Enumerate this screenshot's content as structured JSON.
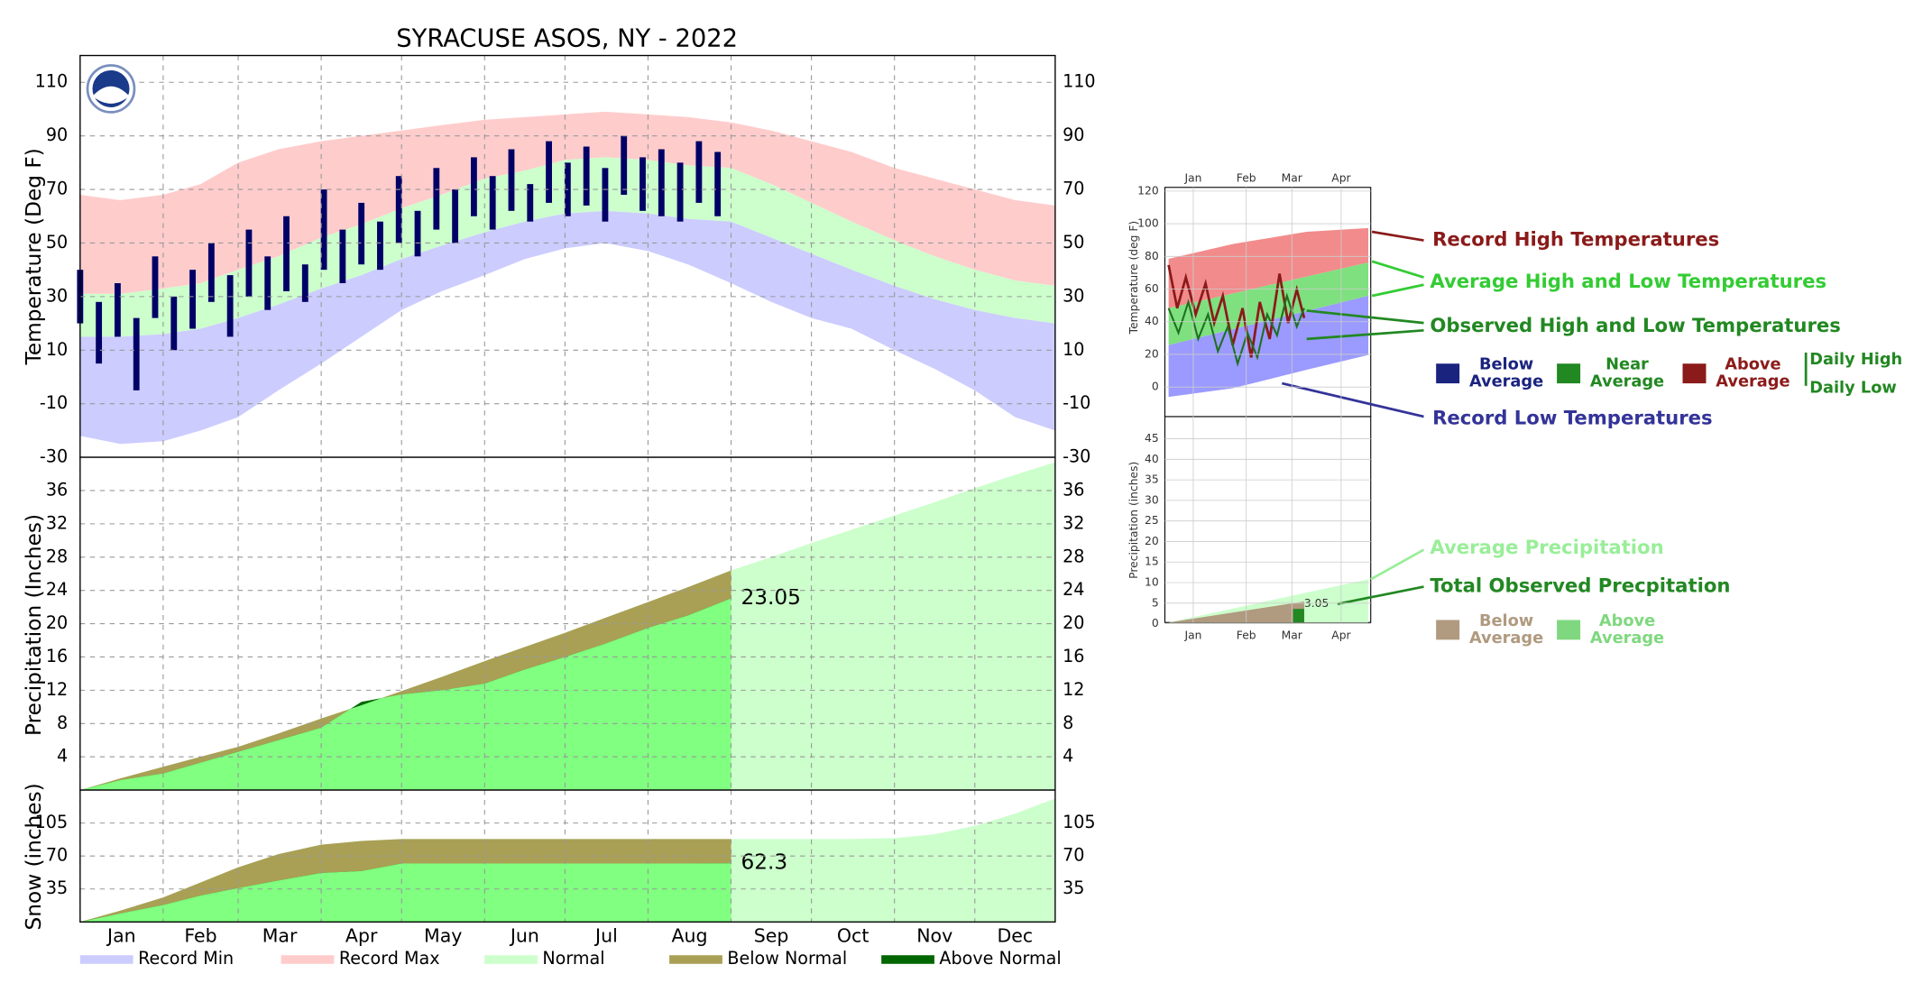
{
  "title": "SYRACUSE     ASOS, NY - 2022",
  "legend": [
    {
      "name": "Record Min",
      "color": "#ccccff"
    },
    {
      "name": "Record Max",
      "color": "#ffcccc"
    },
    {
      "name": "Normal",
      "color": "#ccffcc"
    },
    {
      "name": "Below Normal",
      "color": "#a9a055"
    },
    {
      "name": "Above Normal",
      "color": "#006600"
    }
  ],
  "chart_data": [
    {
      "type": "temperature",
      "ylabel": "Temperature (Deg F)",
      "grid": true,
      "xlim": [
        1,
        365
      ],
      "ylim": [
        -30,
        120
      ],
      "yticks": [
        -30,
        -10,
        10,
        30,
        50,
        70,
        90,
        110
      ],
      "x": [
        1,
        16,
        32,
        46,
        60,
        75,
        91,
        106,
        121,
        136,
        152,
        167,
        182,
        197,
        213,
        228,
        244,
        259,
        274,
        289,
        305,
        320,
        335,
        350,
        365
      ],
      "record_max": [
        68,
        66,
        68,
        72,
        80,
        85,
        88,
        90,
        92,
        94,
        96,
        97,
        98,
        99,
        98,
        97,
        95,
        92,
        88,
        84,
        78,
        74,
        70,
        66,
        64
      ],
      "normal_high": [
        31,
        31,
        33,
        35,
        40,
        45,
        52,
        57,
        63,
        68,
        74,
        77,
        81,
        82,
        81,
        79,
        78,
        72,
        65,
        58,
        51,
        45,
        40,
        36,
        34
      ],
      "normal_low": [
        15,
        15,
        16,
        18,
        22,
        27,
        33,
        38,
        44,
        49,
        54,
        58,
        61,
        62,
        61,
        59,
        58,
        52,
        46,
        40,
        34,
        29,
        25,
        22,
        20
      ],
      "record_min": [
        -22,
        -25,
        -24,
        -20,
        -15,
        -5,
        5,
        15,
        25,
        32,
        38,
        44,
        48,
        50,
        47,
        42,
        35,
        28,
        22,
        18,
        10,
        3,
        -5,
        -15,
        -20
      ],
      "observed_color": "#000066",
      "observed_x": [
        1,
        8,
        15,
        22,
        29,
        36,
        43,
        50,
        57,
        64,
        71,
        78,
        85,
        92,
        99,
        106,
        113,
        120,
        127,
        134,
        141,
        148,
        155,
        162,
        169,
        176,
        183,
        190,
        197,
        204,
        211,
        218,
        225,
        232,
        239
      ],
      "observed_high": [
        40,
        28,
        35,
        22,
        45,
        30,
        40,
        50,
        38,
        55,
        45,
        60,
        42,
        70,
        55,
        65,
        58,
        75,
        62,
        78,
        70,
        82,
        75,
        85,
        72,
        88,
        80,
        86,
        78,
        90,
        82,
        85,
        80,
        88,
        84
      ],
      "observed_low": [
        20,
        5,
        15,
        -5,
        22,
        10,
        18,
        28,
        15,
        30,
        25,
        32,
        28,
        40,
        35,
        42,
        40,
        50,
        45,
        55,
        50,
        60,
        55,
        62,
        58,
        65,
        60,
        64,
        58,
        68,
        62,
        60,
        58,
        65,
        60
      ]
    },
    {
      "type": "cumulative",
      "ylabel": "Precipitation (Inches)",
      "grid": true,
      "xlim": [
        1,
        365
      ],
      "ylim": [
        0,
        40
      ],
      "yticks": [
        4,
        8,
        12,
        16,
        20,
        24,
        28,
        32,
        36
      ],
      "x": [
        1,
        16,
        32,
        46,
        60,
        75,
        91,
        106,
        121,
        136,
        152,
        167,
        182,
        197,
        213,
        228,
        244,
        259,
        274,
        289,
        305,
        320,
        335,
        350,
        365
      ],
      "normal": [
        0,
        1.4,
        2.8,
        4.0,
        5.2,
        6.8,
        8.6,
        10.2,
        11.9,
        13.6,
        15.5,
        17.2,
        18.9,
        20.7,
        22.6,
        24.4,
        26.4,
        28.0,
        29.7,
        31.3,
        33.0,
        34.6,
        36.3,
        37.9,
        39.4
      ],
      "observed": [
        0,
        1.2,
        2.0,
        3.3,
        4.6,
        6.0,
        7.5,
        10.6,
        11.5,
        12.0,
        12.8,
        14.5,
        16.0,
        17.6,
        19.5,
        21.0,
        23.05,
        null,
        null,
        null,
        null,
        null,
        null,
        null,
        null
      ]
    },
    {
      "type": "cumulative",
      "ylabel": "Snow (inches)",
      "grid": true,
      "xlim": [
        1,
        365
      ],
      "ylim": [
        0,
        140
      ],
      "yticks": [
        35,
        70,
        105
      ],
      "xticks": [
        {
          "value": 1,
          "label": "Jan"
        },
        {
          "value": 32,
          "label": "Feb"
        },
        {
          "value": 60,
          "label": "Mar"
        },
        {
          "value": 91,
          "label": "Apr"
        },
        {
          "value": 121,
          "label": "May"
        },
        {
          "value": 152,
          "label": "Jun"
        },
        {
          "value": 182,
          "label": "Jul"
        },
        {
          "value": 213,
          "label": "Aug"
        },
        {
          "value": 244,
          "label": "Sep"
        },
        {
          "value": 274,
          "label": "Oct"
        },
        {
          "value": 305,
          "label": "Nov"
        },
        {
          "value": 335,
          "label": "Dec"
        }
      ],
      "x": [
        1,
        16,
        32,
        46,
        60,
        75,
        91,
        106,
        121,
        136,
        152,
        167,
        182,
        197,
        213,
        228,
        244,
        259,
        274,
        289,
        305,
        320,
        335,
        350,
        365
      ],
      "normal": [
        0,
        12,
        26,
        42,
        58,
        72,
        82,
        86,
        88,
        88,
        88,
        88,
        88,
        88,
        88,
        88,
        88,
        88,
        88,
        88,
        89,
        93,
        102,
        115,
        131
      ],
      "observed": [
        0,
        9,
        18,
        28,
        36,
        44,
        52,
        54,
        62,
        62,
        62,
        62,
        62,
        62,
        62,
        62,
        62.3,
        null,
        null,
        null,
        null,
        null,
        null,
        null,
        null
      ]
    }
  ],
  "key": {
    "months": [
      "Jan",
      "Feb",
      "Mar",
      "Apr"
    ],
    "temp_yticks": [
      120,
      100,
      80,
      60,
      40,
      20,
      0
    ],
    "precip_yticks": [
      45,
      40,
      35,
      30,
      25,
      20,
      15,
      10,
      5,
      0
    ],
    "temp_axis_label": "Temperature (deg F)",
    "precip_axis_label": "Precipitation (inches)",
    "sample_value": 3.05,
    "record_high": "Record High Temperatures",
    "average": "Average High and Low Temperatures",
    "observed": "Observed High and Low Temperatures",
    "record_low": "Record Low Temperatures",
    "temp_categories": [
      {
        "line1": "Below",
        "line2": "Average",
        "color": "#1a237e"
      },
      {
        "line1": "Near",
        "line2": "Average",
        "color": "#228822"
      },
      {
        "line1": "Above",
        "line2": "Average",
        "color": "#8b1a1a"
      }
    ],
    "daily_high": "Daily High",
    "daily_low": "Daily Low",
    "avg_precip": "Average Precipitation",
    "total_precip": "Total Observed Precpitation",
    "precip_categories": [
      {
        "line1": "Below",
        "line2": "Average",
        "color": "#b09a80"
      },
      {
        "line1": "Above",
        "line2": "Average",
        "color": "#7fd87f"
      }
    ]
  }
}
